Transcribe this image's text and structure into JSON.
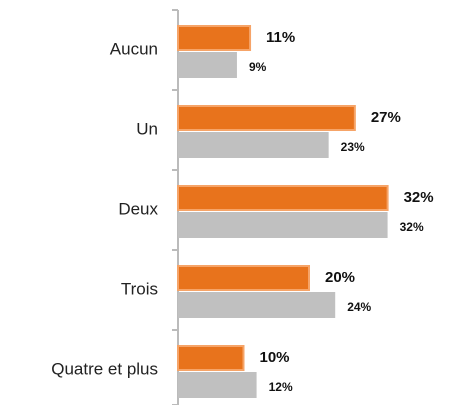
{
  "chart_data": {
    "type": "bar",
    "orientation": "horizontal",
    "categories": [
      "Aucun",
      "Un",
      "Deux",
      "Trois",
      "Quatre et plus"
    ],
    "series": [
      {
        "color": "#e8731c",
        "values": [
          11,
          27,
          32,
          20,
          10
        ],
        "value_labels": [
          "11%",
          "27%",
          "32%",
          "20%",
          "10%"
        ]
      },
      {
        "color": "#c0c0c0",
        "values": [
          9,
          23,
          32,
          24,
          12
        ],
        "value_labels": [
          "9%",
          "23%",
          "32%",
          "24%",
          "12%"
        ]
      }
    ],
    "xlim": [
      0,
      40
    ]
  }
}
